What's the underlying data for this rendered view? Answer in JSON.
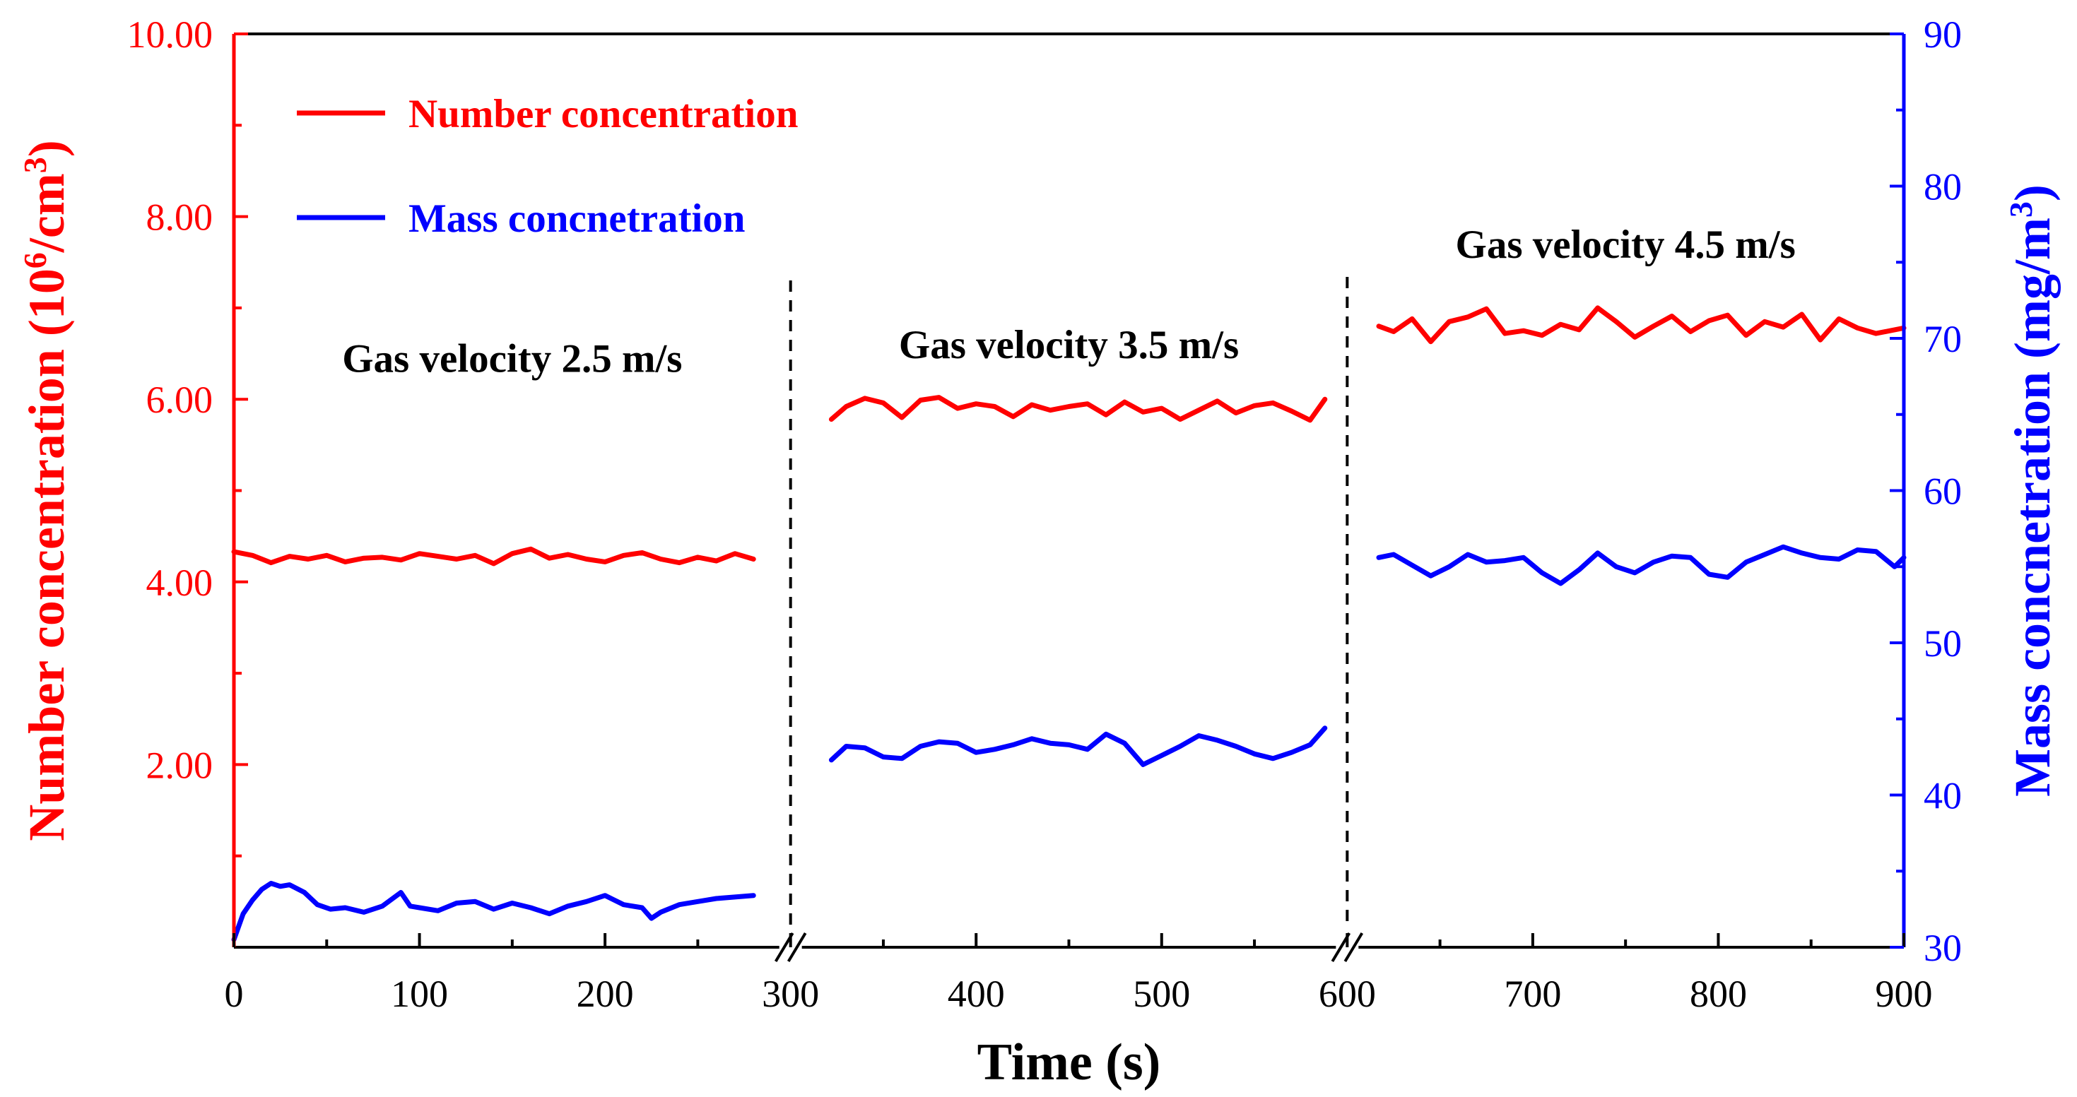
{
  "chart_data": {
    "type": "line",
    "xlabel": "Time (s)",
    "ylabel_left": "Number concentration (10^6/cm^3)",
    "ylabel_right": "Mass concnetration (mg/m^3)",
    "xlim": [
      0,
      900
    ],
    "ylim_left": [
      0,
      10
    ],
    "ylim_right": [
      30,
      90
    ],
    "x_ticks": [
      "0",
      "100",
      "200",
      "300",
      "400",
      "500",
      "600",
      "700",
      "800",
      "900"
    ],
    "left_ticks": [
      {
        "value": 2,
        "label": "2.00"
      },
      {
        "value": 4,
        "label": "4.00"
      },
      {
        "value": 6,
        "label": "6.00"
      },
      {
        "value": 8,
        "label": "8.00"
      },
      {
        "value": 10,
        "label": "10.00"
      }
    ],
    "right_ticks": [
      "30",
      "40",
      "50",
      "60",
      "70",
      "80",
      "90"
    ],
    "axis_breaks_x": [
      300,
      600
    ],
    "dividers_x": [
      300,
      600
    ],
    "left_axis_color": "#ff0000",
    "right_axis_color": "#0000ff",
    "legend": [
      {
        "label": "Number concentration",
        "color": "#ff0000"
      },
      {
        "label": "Mass concnetration",
        "color": "#0000ff"
      }
    ],
    "annotations": [
      {
        "text": "Gas velocity 2.5 m/s",
        "x": 150,
        "y_left": 6.3
      },
      {
        "text": "Gas velocity 3.5 m/s",
        "x": 450,
        "y_left": 6.45
      },
      {
        "text": "Gas velocity 4.5 m/s",
        "x": 750,
        "y_left": 7.55
      }
    ],
    "series": [
      {
        "name": "Number concentration",
        "axis": "left",
        "color": "#ff0000",
        "segments": [
          {
            "x": [
              0,
              10,
              20,
              30,
              40,
              50,
              60,
              70,
              80,
              90,
              100,
              110,
              120,
              130,
              140,
              150,
              160,
              170,
              180,
              190,
              200,
              210,
              220,
              230,
              240,
              250,
              260,
              270,
              280
            ],
            "y": [
              4.33,
              4.29,
              4.21,
              4.28,
              4.25,
              4.29,
              4.22,
              4.26,
              4.27,
              4.24,
              4.31,
              4.28,
              4.25,
              4.29,
              4.2,
              4.31,
              4.36,
              4.26,
              4.3,
              4.25,
              4.22,
              4.29,
              4.32,
              4.25,
              4.21,
              4.27,
              4.23,
              4.31,
              4.25
            ]
          },
          {
            "x": [
              322,
              330,
              340,
              350,
              360,
              370,
              380,
              390,
              400,
              410,
              420,
              430,
              440,
              450,
              460,
              470,
              480,
              490,
              500,
              510,
              520,
              530,
              540,
              550,
              560,
              570,
              580,
              588
            ],
            "y": [
              5.78,
              5.92,
              6.01,
              5.96,
              5.8,
              5.99,
              6.02,
              5.9,
              5.95,
              5.92,
              5.81,
              5.94,
              5.88,
              5.92,
              5.95,
              5.83,
              5.97,
              5.86,
              5.9,
              5.78,
              5.88,
              5.98,
              5.85,
              5.93,
              5.96,
              5.87,
              5.77,
              6.0
            ]
          },
          {
            "x": [
              617,
              625,
              635,
              645,
              655,
              665,
              675,
              685,
              695,
              705,
              715,
              725,
              735,
              745,
              755,
              765,
              775,
              785,
              795,
              805,
              815,
              825,
              835,
              845,
              855,
              865,
              875,
              885,
              900
            ],
            "y": [
              6.8,
              6.74,
              6.88,
              6.63,
              6.85,
              6.9,
              6.99,
              6.72,
              6.75,
              6.7,
              6.82,
              6.76,
              7.0,
              6.85,
              6.68,
              6.8,
              6.91,
              6.74,
              6.86,
              6.92,
              6.7,
              6.85,
              6.79,
              6.93,
              6.65,
              6.88,
              6.78,
              6.72,
              6.78
            ]
          }
        ]
      },
      {
        "name": "Mass concnetration",
        "axis": "right",
        "color": "#0000ff",
        "segments": [
          {
            "x": [
              0,
              5,
              10,
              15,
              20,
              25,
              30,
              38,
              45,
              52,
              60,
              70,
              80,
              90,
              95,
              100,
              110,
              120,
              130,
              140,
              150,
              160,
              170,
              180,
              190,
              200,
              210,
              220,
              225,
              230,
              240,
              250,
              260,
              270,
              280
            ],
            "y": [
              30.5,
              32.2,
              33.1,
              33.8,
              34.2,
              34.0,
              34.1,
              33.6,
              32.8,
              32.5,
              32.6,
              32.3,
              32.7,
              33.6,
              32.7,
              32.6,
              32.4,
              32.9,
              33.0,
              32.5,
              32.9,
              32.6,
              32.2,
              32.7,
              33.0,
              33.4,
              32.8,
              32.6,
              31.9,
              32.3,
              32.8,
              33.0,
              33.2,
              33.3,
              33.4
            ]
          },
          {
            "x": [
              322,
              330,
              340,
              350,
              360,
              370,
              380,
              390,
              400,
              410,
              420,
              430,
              440,
              450,
              460,
              470,
              480,
              490,
              500,
              510,
              520,
              530,
              540,
              550,
              560,
              570,
              580,
              588
            ],
            "y": [
              42.3,
              43.2,
              43.1,
              42.5,
              42.4,
              43.2,
              43.5,
              43.4,
              42.8,
              43.0,
              43.3,
              43.7,
              43.4,
              43.3,
              43.0,
              44.0,
              43.4,
              42.0,
              42.6,
              43.2,
              43.9,
              43.6,
              43.2,
              42.7,
              42.4,
              42.8,
              43.3,
              44.4
            ]
          },
          {
            "x": [
              617,
              625,
              635,
              645,
              655,
              665,
              675,
              685,
              695,
              705,
              715,
              725,
              735,
              745,
              755,
              765,
              775,
              785,
              795,
              805,
              815,
              825,
              835,
              845,
              855,
              865,
              875,
              885,
              895,
              900
            ],
            "y": [
              55.6,
              55.8,
              55.1,
              54.4,
              55.0,
              55.8,
              55.3,
              55.4,
              55.6,
              54.6,
              53.9,
              54.8,
              55.9,
              55.0,
              54.6,
              55.3,
              55.7,
              55.6,
              54.5,
              54.3,
              55.3,
              55.8,
              56.3,
              55.9,
              55.6,
              55.5,
              56.1,
              56.0,
              55.0,
              55.6
            ]
          }
        ]
      }
    ]
  }
}
